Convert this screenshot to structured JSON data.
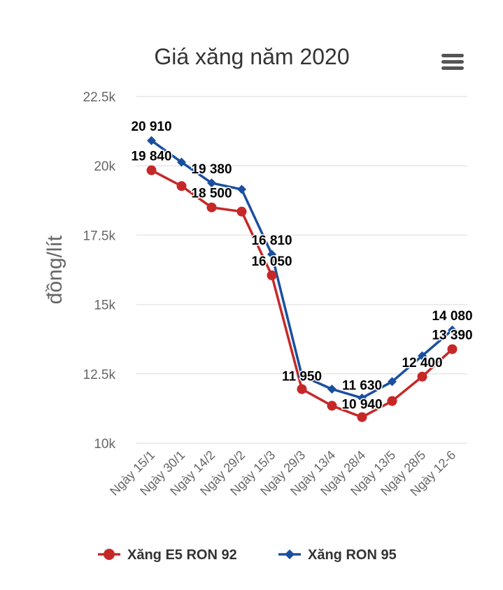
{
  "colors": {
    "series_e5": "#c62828",
    "series_ron95": "#1a4fa0",
    "grid": "#e6e6e6",
    "menu_icon": "#555555"
  },
  "menu": {
    "icon": "hamburger-menu-icon"
  },
  "chart_data": {
    "type": "line",
    "title": "Giá xăng năm 2020",
    "xlabel": "",
    "ylabel": "đồng/lít",
    "ylim": [
      10000,
      22500
    ],
    "yticks": [
      10000,
      12500,
      15000,
      17500,
      20000,
      22500
    ],
    "ytick_labels": [
      "10k",
      "12.5k",
      "15k",
      "17.5k",
      "20k",
      "22.5k"
    ],
    "grid": true,
    "legend_position": "bottom",
    "categories": [
      "Ngày 15/1",
      "Ngày 30/1",
      "Ngày 14/2",
      "Ngày 29/2",
      "Ngày 15/3",
      "Ngày 29/3",
      "Ngày 13/4",
      "Ngày 28/4",
      "Ngày 13/5",
      "Ngày 28/5",
      "Ngày 12-6"
    ],
    "series": [
      {
        "name": "Xăng E5 RON 92",
        "marker": "circle",
        "values": [
          19840,
          19270,
          18500,
          18350,
          16050,
          11950,
          11350,
          10940,
          11520,
          12400,
          13390
        ],
        "data_labels": [
          "19 840",
          "",
          "18 500",
          "",
          "16 050",
          "11 950",
          "",
          "10 940",
          "",
          "12 400",
          "13 390"
        ]
      },
      {
        "name": "Xăng RON 95",
        "marker": "diamond",
        "values": [
          20910,
          20130,
          19380,
          19150,
          16810,
          12430,
          11950,
          11630,
          12220,
          13150,
          14080
        ],
        "data_labels": [
          "20 910",
          "",
          "19 380",
          "",
          "16 810",
          "",
          "",
          "11 630",
          "",
          "",
          "14 080"
        ]
      }
    ]
  }
}
